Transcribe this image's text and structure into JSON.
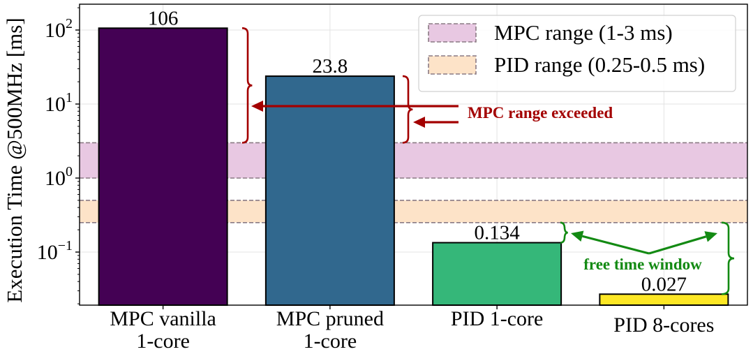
{
  "chart_data": {
    "type": "bar",
    "yscale": "log",
    "ylabel": "Execution Time @500MHz [ms]",
    "ylim": [
      0.02,
      200
    ],
    "y_ticks": [
      {
        "value": 0.1,
        "base": "10",
        "exp": "−1"
      },
      {
        "value": 1,
        "base": "10",
        "exp": "0"
      },
      {
        "value": 10,
        "base": "10",
        "exp": "1"
      },
      {
        "value": 100,
        "base": "10",
        "exp": "2"
      }
    ],
    "categories": [
      {
        "lines": [
          "MPC vanilla",
          "1-core"
        ]
      },
      {
        "lines": [
          "MPC pruned",
          "1-core"
        ]
      },
      {
        "lines": [
          "PID 1-core"
        ]
      },
      {
        "lines": [
          "PID 8-cores"
        ]
      }
    ],
    "values": [
      106,
      23.8,
      0.134,
      0.027
    ],
    "value_labels": [
      "106",
      "23.8",
      "0.134",
      "0.027"
    ],
    "bar_colors": [
      "#440154",
      "#31688e",
      "#35b779",
      "#fde725"
    ],
    "grid": true,
    "ranges": [
      {
        "label": "MPC range (1-3 ms)",
        "low": 1,
        "high": 3,
        "color": "#e8c8e2"
      },
      {
        "label": "PID range (0.25-0.5 ms)",
        "low": 0.25,
        "high": 0.5,
        "color": "#fde3c8"
      }
    ],
    "legend_position": "top-right",
    "annotations": [
      {
        "text": "MPC range exceeded",
        "color": "#a30000"
      },
      {
        "text": "free time window",
        "color": "#138a13"
      }
    ]
  }
}
